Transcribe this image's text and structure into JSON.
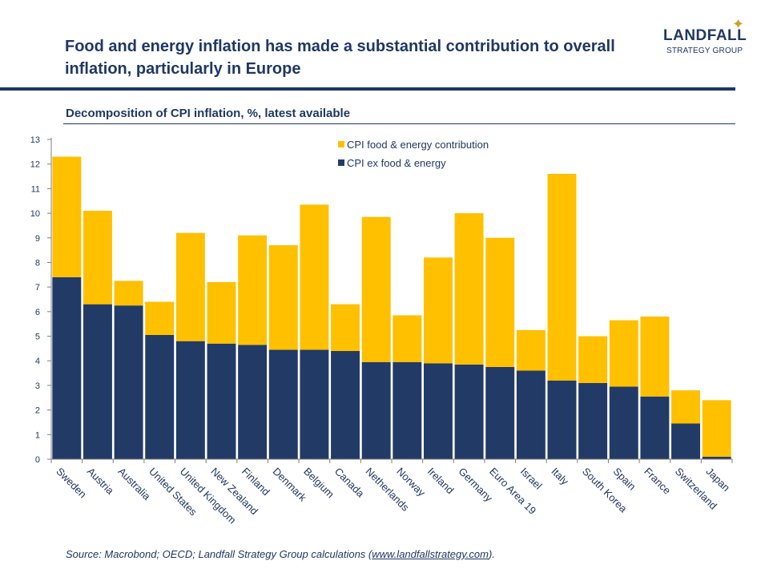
{
  "headline": "Food and energy inflation has made a substantial contribution to overall inflation, particularly in Europe",
  "logo": {
    "name": "LANDFALL",
    "tagline": "STRATEGY GROUP",
    "star": "✦"
  },
  "subtitle": "Decomposition of CPI inflation, %, latest available",
  "source": {
    "prefix": "Source: Macrobond; OECD; Landfall Strategy Group calculations (",
    "link": "www.landfallstrategy.com",
    "suffix": ")."
  },
  "colors": {
    "navy": "#223a66",
    "gold": "#ffc000",
    "axis": "#7f7f7f"
  },
  "chart_data": {
    "type": "bar",
    "stacked": true,
    "categories": [
      "Sweden",
      "Austria",
      "Australia",
      "United States",
      "United Kingdom",
      "New Zealand",
      "Finland",
      "Denmark",
      "Belgium",
      "Canada",
      "Netherlands",
      "Norway",
      "Ireland",
      "Germany",
      "Euro Area 19",
      "Israel",
      "Italy",
      "South Korea",
      "Spain",
      "France",
      "Switzerland",
      "Japan"
    ],
    "series": [
      {
        "name": "CPI ex food & energy",
        "color": "#223a66",
        "values": [
          7.4,
          6.3,
          6.25,
          5.05,
          4.8,
          4.7,
          4.65,
          4.45,
          4.45,
          4.4,
          3.95,
          3.95,
          3.9,
          3.85,
          3.75,
          3.6,
          3.2,
          3.1,
          2.95,
          2.55,
          1.45,
          0.1
        ]
      },
      {
        "name": "CPI food & energy contribution",
        "color": "#ffc000",
        "values": [
          4.9,
          3.8,
          1.0,
          1.35,
          4.4,
          2.5,
          4.45,
          4.25,
          5.9,
          1.9,
          5.9,
          1.9,
          4.3,
          6.15,
          5.25,
          1.65,
          8.4,
          1.9,
          2.7,
          3.25,
          1.35,
          2.3
        ]
      }
    ],
    "legend_order": [
      "CPI food & energy contribution",
      "CPI ex food & energy"
    ],
    "legend_position": "top-center",
    "ylim": [
      0,
      13
    ],
    "yticks": [
      "0",
      "1",
      "2",
      "3",
      "4",
      "5",
      "6",
      "7",
      "8",
      "9",
      "10",
      "11",
      "12",
      "13"
    ],
    "grid": false,
    "xlabel": "",
    "ylabel": ""
  }
}
